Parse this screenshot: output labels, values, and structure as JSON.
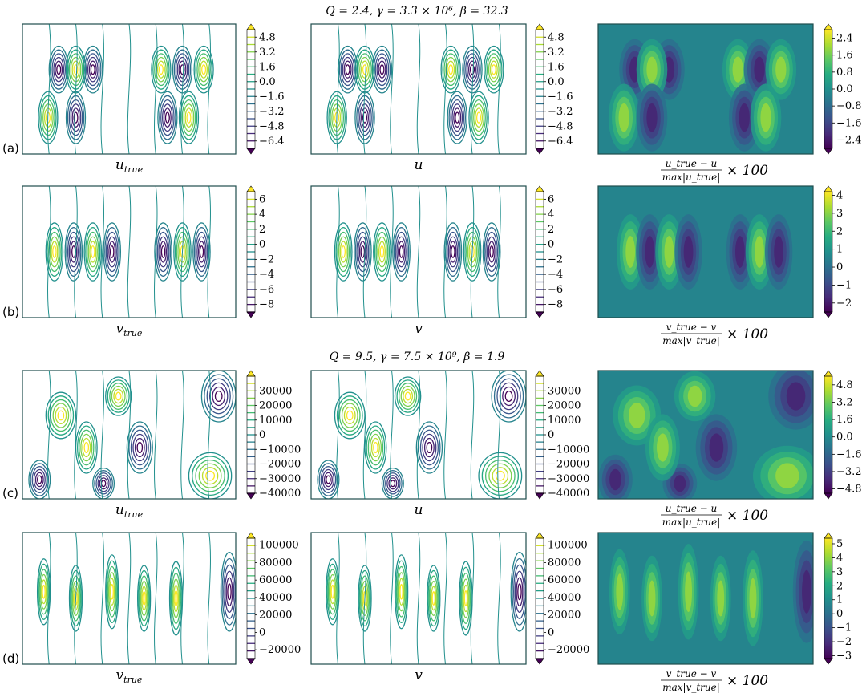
{
  "figure": {
    "row_groups": [
      {
        "title": "Q = 2.4,  γ = 3.3 × 10⁶,  β = 32.3"
      },
      {
        "title": "Q = 9.5,  γ = 7.5 × 10⁹,  β = 1.9"
      }
    ],
    "error_label": {
      "scale": "× 100"
    }
  },
  "colors": {
    "viridis": [
      "#440154",
      "#472c7a",
      "#3b518b",
      "#2c718e",
      "#21908d",
      "#27ad81",
      "#5cc863",
      "#aadc32",
      "#fde725"
    ]
  },
  "chart_data": [
    {
      "type": "heatmap",
      "id": "a-true",
      "row_label": "(a)",
      "panel": "contour",
      "xlabel_main": "u",
      "xlabel_sub": "true",
      "colorbar_ticks": [
        "4.8",
        "3.2",
        "1.6",
        "0.0",
        "−1.6",
        "−3.2",
        "−4.8",
        "−6.4"
      ],
      "colorbar_range": [
        -7.2,
        5.6
      ]
    },
    {
      "type": "heatmap",
      "id": "a-pred",
      "panel": "contour",
      "xlabel_main": "u",
      "xlabel_sub": "",
      "colorbar_ticks": [
        "4.8",
        "3.2",
        "1.6",
        "0.0",
        "−1.6",
        "−3.2",
        "−4.8",
        "−6.4"
      ],
      "colorbar_range": [
        -7.2,
        5.6
      ]
    },
    {
      "type": "heatmap",
      "id": "a-err",
      "panel": "filled",
      "frac_num": "u_true − u",
      "frac_den": "max|u_true|",
      "colorbar_ticks": [
        "2.4",
        "1.6",
        "0.8",
        "0.0",
        "−0.8",
        "−1.6",
        "−2.4"
      ],
      "colorbar_range": [
        -2.8,
        2.8
      ]
    },
    {
      "type": "heatmap",
      "id": "b-true",
      "row_label": "(b)",
      "panel": "contour",
      "xlabel_main": "v",
      "xlabel_sub": "true",
      "colorbar_ticks": [
        "6",
        "4",
        "2",
        "0",
        "−2",
        "−4",
        "−6",
        "−8"
      ],
      "colorbar_range": [
        -9,
        7
      ]
    },
    {
      "type": "heatmap",
      "id": "b-pred",
      "panel": "contour",
      "xlabel_main": "v",
      "xlabel_sub": "",
      "colorbar_ticks": [
        "6",
        "4",
        "2",
        "0",
        "−2",
        "−4",
        "−6",
        "−8"
      ],
      "colorbar_range": [
        -9,
        7
      ]
    },
    {
      "type": "heatmap",
      "id": "b-err",
      "panel": "filled",
      "frac_num": "v_true − v",
      "frac_den": "max|v_true|",
      "colorbar_ticks": [
        "4",
        "3",
        "2",
        "1",
        "0",
        "−1",
        "−2"
      ],
      "colorbar_range": [
        -2.5,
        4.2
      ]
    },
    {
      "type": "heatmap",
      "id": "c-true",
      "row_label": "(c)",
      "panel": "contour",
      "xlabel_main": "u",
      "xlabel_sub": "true",
      "colorbar_ticks": [
        "30000",
        "20000",
        "10000",
        "0",
        "−10000",
        "−20000",
        "−30000",
        "−40000"
      ],
      "colorbar_range": [
        -40000,
        40000
      ]
    },
    {
      "type": "heatmap",
      "id": "c-pred",
      "panel": "contour",
      "xlabel_main": "u",
      "xlabel_sub": "",
      "colorbar_ticks": [
        "30000",
        "20000",
        "10000",
        "0",
        "−10000",
        "−20000",
        "−30000",
        "−40000"
      ],
      "colorbar_range": [
        -40000,
        40000
      ]
    },
    {
      "type": "heatmap",
      "id": "c-err",
      "panel": "filled",
      "frac_num": "u_true − u",
      "frac_den": "max|u_true|",
      "colorbar_ticks": [
        "4.8",
        "3.2",
        "1.6",
        "0.0",
        "−1.6",
        "−3.2",
        "−4.8"
      ],
      "colorbar_range": [
        -5.2,
        5.6
      ]
    },
    {
      "type": "heatmap",
      "id": "d-true",
      "row_label": "(d)",
      "panel": "contour",
      "xlabel_main": "v",
      "xlabel_sub": "true",
      "colorbar_ticks": [
        "100000",
        "80000",
        "60000",
        "40000",
        "20000",
        "0",
        "−20000"
      ],
      "colorbar_range": [
        -30000,
        108000
      ]
    },
    {
      "type": "heatmap",
      "id": "d-pred",
      "panel": "contour",
      "xlabel_main": "v",
      "xlabel_sub": "",
      "colorbar_ticks": [
        "100000",
        "80000",
        "60000",
        "40000",
        "20000",
        "0",
        "−20000"
      ],
      "colorbar_range": [
        -30000,
        108000
      ]
    },
    {
      "type": "heatmap",
      "id": "d-err",
      "panel": "filled",
      "frac_num": "v_true − v",
      "frac_den": "max|v_true|",
      "colorbar_ticks": [
        "5",
        "4",
        "3",
        "2",
        "1",
        "0",
        "−1",
        "−2",
        "−3"
      ],
      "colorbar_range": [
        -3.2,
        5.4
      ]
    }
  ]
}
